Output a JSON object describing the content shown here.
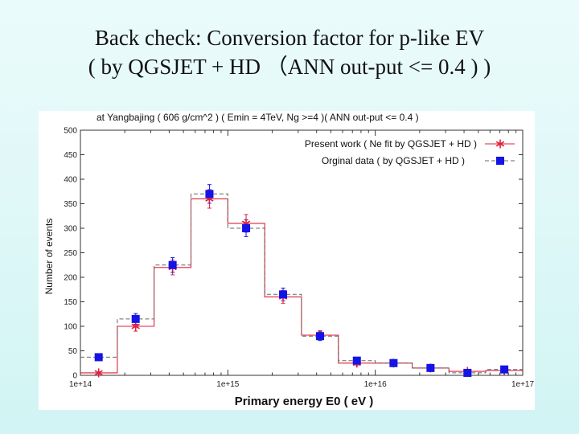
{
  "slide": {
    "title_line1": "Back check: Conversion factor for p-like EV",
    "title_line2": "( by QGSJET + HD （ANN out-put <= 0.4 ) )"
  },
  "colors": {
    "background": "#dff7f7",
    "present_work": "#e0203a",
    "original_data": "#1414e6"
  },
  "chart_data": {
    "type": "scatter",
    "title": "at  Yangbajing ( 606 g/cm^2 ) ( Emin = 4TeV, Ng >=4 )( ANN out-put <= 0.4 )",
    "xlabel": "Primary   energy   E0  ( eV )",
    "ylabel": "Number of events",
    "x_scale": "log",
    "xlim": [
      100000000000000.0,
      1e+17
    ],
    "ylim": [
      0,
      500
    ],
    "x_tick_labels": [
      "1e+14",
      "1e+15",
      "1e+16",
      "1e+17"
    ],
    "y_ticks": [
      0,
      50,
      100,
      150,
      200,
      250,
      300,
      350,
      400,
      450,
      500
    ],
    "legend_position": "top-right",
    "series": [
      {
        "name": "Present work ( Ne fit  by QGSJET + HD )",
        "marker": "asterisk",
        "color": "#e0203a",
        "bin_edges": [
          100000000000000.0,
          178000000000000.0,
          316000000000000.0,
          562000000000000.0,
          1000000000000000.0,
          1780000000000000.0,
          3160000000000000.0,
          5620000000000000.0,
          1e+16,
          1.78e+16,
          3.16e+16,
          5.62e+16,
          1e+17
        ],
        "x": [
          133000000000000.0,
          237000000000000.0,
          422000000000000.0,
          750000000000000.0,
          1330000000000000.0,
          2370000000000000.0,
          4220000000000000.0,
          7500000000000000.0,
          1.33e+16,
          2.37e+16,
          4.22e+16,
          7.5e+16
        ],
        "y": [
          5,
          100,
          220,
          360,
          310,
          160,
          82,
          25,
          25,
          15,
          8,
          10
        ],
        "err": [
          2,
          10,
          15,
          19,
          18,
          13,
          9,
          5,
          5,
          4,
          3,
          3
        ]
      },
      {
        "name": "Orginal data ( by QGSJET + HD )",
        "marker": "square",
        "color": "#1414e6",
        "bin_edges": [
          100000000000000.0,
          178000000000000.0,
          316000000000000.0,
          562000000000000.0,
          1000000000000000.0,
          1780000000000000.0,
          3160000000000000.0,
          5620000000000000.0,
          1e+16,
          1.78e+16,
          3.16e+16,
          5.62e+16,
          1e+17
        ],
        "x": [
          133000000000000.0,
          237000000000000.0,
          422000000000000.0,
          750000000000000.0,
          1330000000000000.0,
          2370000000000000.0,
          4220000000000000.0,
          7500000000000000.0,
          1.33e+16,
          2.37e+16,
          4.22e+16,
          7.5e+16
        ],
        "y": [
          37,
          115,
          225,
          370,
          300,
          165,
          80,
          30,
          25,
          15,
          5,
          12
        ],
        "err": [
          6,
          11,
          15,
          19,
          17,
          13,
          9,
          5,
          5,
          4,
          2,
          3
        ]
      }
    ]
  }
}
